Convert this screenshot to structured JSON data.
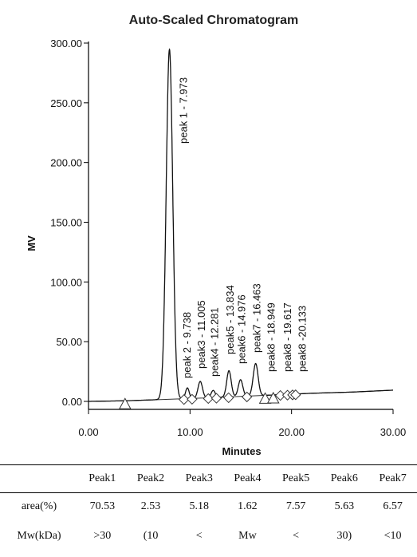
{
  "chart_data": {
    "type": "line",
    "title": "Auto-Scaled Chromatogram",
    "xlabel": "Minutes",
    "ylabel": "MV",
    "xlim": [
      0,
      30
    ],
    "ylim": [
      -5,
      300
    ],
    "x_ticks": [
      "0.00",
      "10.00",
      "20.00",
      "30.00"
    ],
    "y_ticks": [
      "0.00",
      "50.00",
      "100.00",
      "150.00",
      "200.00",
      "250.00",
      "300.00"
    ],
    "grid": false,
    "baseline": [
      [
        0,
        0
      ],
      [
        3.6,
        0.5
      ],
      [
        6,
        1.2
      ],
      [
        10,
        2.4
      ],
      [
        14,
        3.8
      ],
      [
        18,
        5.3
      ],
      [
        22,
        6.8
      ],
      [
        26,
        7.8
      ],
      [
        30,
        9.4
      ]
    ],
    "peaks": [
      {
        "label": "peak 1 - 7.973",
        "time": 7.973,
        "height": 293,
        "width": 0.32
      },
      {
        "label": "peak 2 - 9.738",
        "time": 9.738,
        "height": 9,
        "width": 0.18
      },
      {
        "label": "peak3 - 11.005",
        "time": 11.005,
        "height": 14,
        "width": 0.22
      },
      {
        "label": "peak4 - 12.281",
        "time": 12.281,
        "height": 6,
        "width": 0.2
      },
      {
        "label": "peak5 - 13.834",
        "time": 13.834,
        "height": 22,
        "width": 0.22
      },
      {
        "label": "peak6 - 14.976",
        "time": 14.976,
        "height": 14,
        "width": 0.22
      },
      {
        "label": "peak7 - 16.463",
        "time": 16.463,
        "height": 27,
        "width": 0.24
      },
      {
        "label": "peak8 - 18.949",
        "time": 18.949,
        "height": 0.8,
        "width": 0.2
      },
      {
        "label": "peak8 - 19.617",
        "time": 19.617,
        "height": 0.8,
        "width": 0.2
      },
      {
        "label": "peak8 -20.133",
        "time": 20.133,
        "height": 0.8,
        "width": 0.2
      }
    ],
    "triangle_markers": [
      3.6,
      17.4,
      18.2
    ],
    "diamond_markers": [
      9.4,
      10.2,
      11.8,
      12.6,
      13.8,
      15.6,
      18.9,
      19.6,
      20.1,
      20.4
    ]
  },
  "table": {
    "columns": [
      "",
      "Peak1",
      "Peak2",
      "Peak3",
      "Peak4",
      "Peak5",
      "Peak6",
      "Peak7"
    ],
    "rows": [
      [
        "area(%)",
        "70.53",
        "2.53",
        "5.18",
        "1.62",
        "7.57",
        "5.63",
        "6.57"
      ],
      [
        "Mw(kDa)",
        ">30",
        "(10",
        "<",
        "Mw",
        "<",
        "30)",
        "<10"
      ]
    ]
  }
}
